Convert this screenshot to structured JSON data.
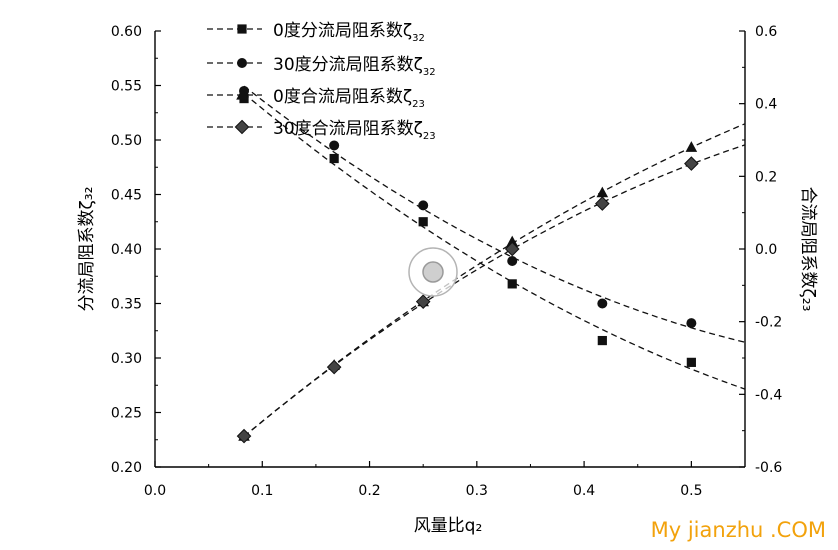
{
  "chart_data": {
    "type": "line",
    "xlabel": "风量比q₂",
    "ylabel_left": "分流局阻系数ζ₃₂",
    "ylabel_right": "合流局阻系数ζ₂₃",
    "xlim": [
      0.0,
      0.55
    ],
    "ylim_left": [
      0.2,
      0.6
    ],
    "ylim_right": [
      -0.6,
      0.6
    ],
    "x_ticks": [
      "0.0",
      "0.1",
      "0.2",
      "0.3",
      "0.4",
      "0.5"
    ],
    "y_left_ticks": [
      "0.20",
      "0.25",
      "0.30",
      "0.35",
      "0.40",
      "0.45",
      "0.50",
      "0.55",
      "0.60"
    ],
    "y_right_ticks": [
      "-0.6",
      "-0.4",
      "-0.2",
      "0.0",
      "0.2",
      "0.4",
      "0.6"
    ],
    "grid": false,
    "legend_position": "top-left",
    "series": [
      {
        "name": "0度分流局阻系数ζ32",
        "legend_main": "0度分流局阻系数ζ",
        "legend_sub": "32",
        "axis": "left",
        "marker": "square",
        "x": [
          0.083,
          0.167,
          0.25,
          0.333,
          0.417,
          0.5
        ],
        "y": [
          0.538,
          0.483,
          0.425,
          0.368,
          0.316,
          0.296
        ]
      },
      {
        "name": "30度分流局阻系数ζ32",
        "legend_main": "30度分流局阻系数ζ",
        "legend_sub": "32",
        "axis": "left",
        "marker": "circle",
        "x": [
          0.083,
          0.167,
          0.25,
          0.333,
          0.417,
          0.5
        ],
        "y": [
          0.545,
          0.495,
          0.44,
          0.389,
          0.35,
          0.332
        ]
      },
      {
        "name": "0度合流局阻系数ζ23",
        "legend_main": "0度合流局阻系数ζ",
        "legend_sub": "23",
        "axis": "right",
        "marker": "triangle",
        "x": [
          0.083,
          0.167,
          0.25,
          0.333,
          0.417,
          0.5
        ],
        "y": [
          -0.515,
          -0.32,
          -0.145,
          0.02,
          0.155,
          0.28
        ]
      },
      {
        "name": "30度合流局阻系数ζ23",
        "legend_main": "30度合流局阻系数ζ",
        "legend_sub": "23",
        "axis": "right",
        "marker": "diamond",
        "x": [
          0.083,
          0.167,
          0.25,
          0.333,
          0.417,
          0.5
        ],
        "y": [
          -0.515,
          -0.325,
          -0.145,
          0.0,
          0.125,
          0.235
        ]
      }
    ]
  },
  "watermark": "My jianzhu .COM"
}
